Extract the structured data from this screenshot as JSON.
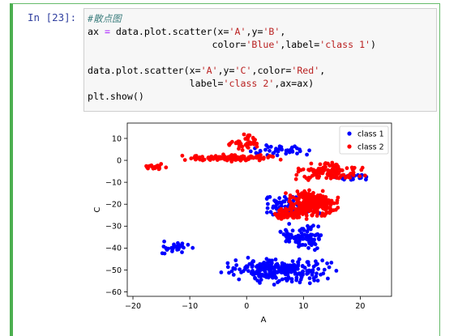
{
  "cell": {
    "prompt": "In  [23]:",
    "code": {
      "comment": "#散点图",
      "line1_a": "ax ",
      "line1_eq": "=",
      "line1_b": " data.plot.scatter(x=",
      "line1_x": "'A'",
      "line1_c": ",y=",
      "line1_y": "'B'",
      "line1_d": ",",
      "line2_indent": "                      color=",
      "line2_color": "'Blue'",
      "line2_mid": ",label=",
      "line2_label": "'class 1'",
      "line2_end": ")",
      "line4_a": "data.plot.scatter(x=",
      "line4_x": "'A'",
      "line4_b": ",y=",
      "line4_y": "'C'",
      "line4_c": ",color=",
      "line4_color": "'Red'",
      "line4_d": ",",
      "line5_indent": "                  label=",
      "line5_label": "'class 2'",
      "line5_end": ",ax=ax)",
      "line6": "plt.show()"
    }
  },
  "chart_data": {
    "type": "scatter",
    "xlabel": "A",
    "ylabel": "C",
    "xlim": [
      -21,
      25.5
    ],
    "ylim": [
      -62,
      17
    ],
    "xticks": [
      -20,
      -10,
      0,
      10,
      20
    ],
    "yticks": [
      10,
      0,
      -10,
      -20,
      -30,
      -40,
      -50,
      -60
    ],
    "grid": false,
    "legend_position": "top-right",
    "series": [
      {
        "name": "class 1",
        "color": "#0000ff",
        "clusters": [
          {
            "xrange": [
              -19,
              -6
            ],
            "yrange": [
              -44,
              -36
            ],
            "count": 30
          },
          {
            "xrange": [
              -6,
              17
            ],
            "yrange": [
              -57,
              -43
            ],
            "count": 260
          },
          {
            "xrange": [
              5,
              15
            ],
            "yrange": [
              -42,
              -28
            ],
            "count": 90
          },
          {
            "xrange": [
              0,
              14
            ],
            "yrange": [
              -28,
              -15
            ],
            "count": 80
          },
          {
            "xrange": [
              13,
              24
            ],
            "yrange": [
              -10,
              -5
            ],
            "count": 20
          },
          {
            "xrange": [
              -2,
              14
            ],
            "yrange": [
              1,
              8
            ],
            "count": 40
          }
        ]
      },
      {
        "name": "class 2",
        "color": "#ff0000",
        "clusters": [
          {
            "xrange": [
              -19,
              -13
            ],
            "yrange": [
              -5,
              -1
            ],
            "count": 20
          },
          {
            "xrange": [
              -13,
              8
            ],
            "yrange": [
              -1,
              3
            ],
            "count": 110
          },
          {
            "xrange": [
              -4,
              3
            ],
            "yrange": [
              4,
              13
            ],
            "count": 40
          },
          {
            "xrange": [
              6,
              17
            ],
            "yrange": [
              -28,
              -12
            ],
            "count": 300
          },
          {
            "xrange": [
              7,
              22
            ],
            "yrange": [
              -10,
              0
            ],
            "count": 130
          },
          {
            "xrange": [
              3,
              11
            ],
            "yrange": [
              -28,
              -20
            ],
            "count": 50
          }
        ]
      }
    ]
  }
}
